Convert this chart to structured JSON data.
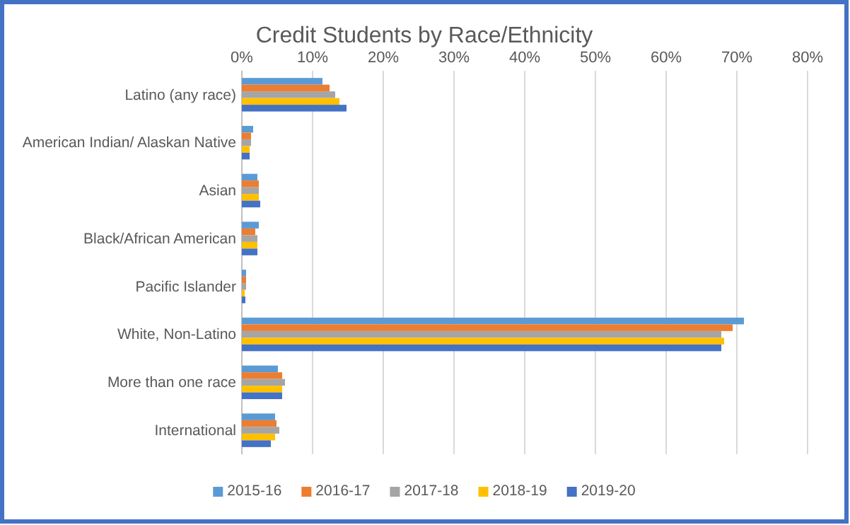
{
  "chart_data": {
    "type": "bar",
    "orientation": "horizontal",
    "title": "Credit Students by Race/Ethnicity",
    "categories": [
      "Latino (any race)",
      "American Indian/ Alaskan Native",
      "Asian",
      "Black/African American",
      "Pacific Islander",
      "White, Non-Latino",
      "More than one race",
      "International"
    ],
    "series": [
      {
        "name": "2015-16",
        "color": "#5b9bd5",
        "values": [
          11.4,
          1.6,
          2.2,
          2.4,
          0.6,
          71.0,
          5.1,
          4.7
        ]
      },
      {
        "name": "2016-17",
        "color": "#ed7d31",
        "values": [
          12.4,
          1.3,
          2.4,
          1.9,
          0.6,
          69.4,
          5.7,
          4.9
        ]
      },
      {
        "name": "2017-18",
        "color": "#a5a5a5",
        "values": [
          13.2,
          1.3,
          2.4,
          2.2,
          0.6,
          67.8,
          6.1,
          5.3
        ]
      },
      {
        "name": "2018-19",
        "color": "#ffc000",
        "values": [
          13.8,
          1.1,
          2.4,
          2.2,
          0.4,
          68.2,
          5.7,
          4.7
        ]
      },
      {
        "name": "2019-20",
        "color": "#4472c4",
        "values": [
          14.8,
          1.1,
          2.6,
          2.2,
          0.5,
          67.8,
          5.7,
          4.1
        ]
      }
    ],
    "xlim": [
      0,
      80
    ],
    "xticks": [
      {
        "value": 0,
        "label": "0%"
      },
      {
        "value": 10,
        "label": "10%"
      },
      {
        "value": 20,
        "label": "20%"
      },
      {
        "value": 30,
        "label": "30%"
      },
      {
        "value": 40,
        "label": "40%"
      },
      {
        "value": 50,
        "label": "50%"
      },
      {
        "value": 60,
        "label": "60%"
      },
      {
        "value": 70,
        "label": "70%"
      },
      {
        "value": 80,
        "label": "80%"
      }
    ],
    "grid": "x",
    "legend": "bottom"
  }
}
